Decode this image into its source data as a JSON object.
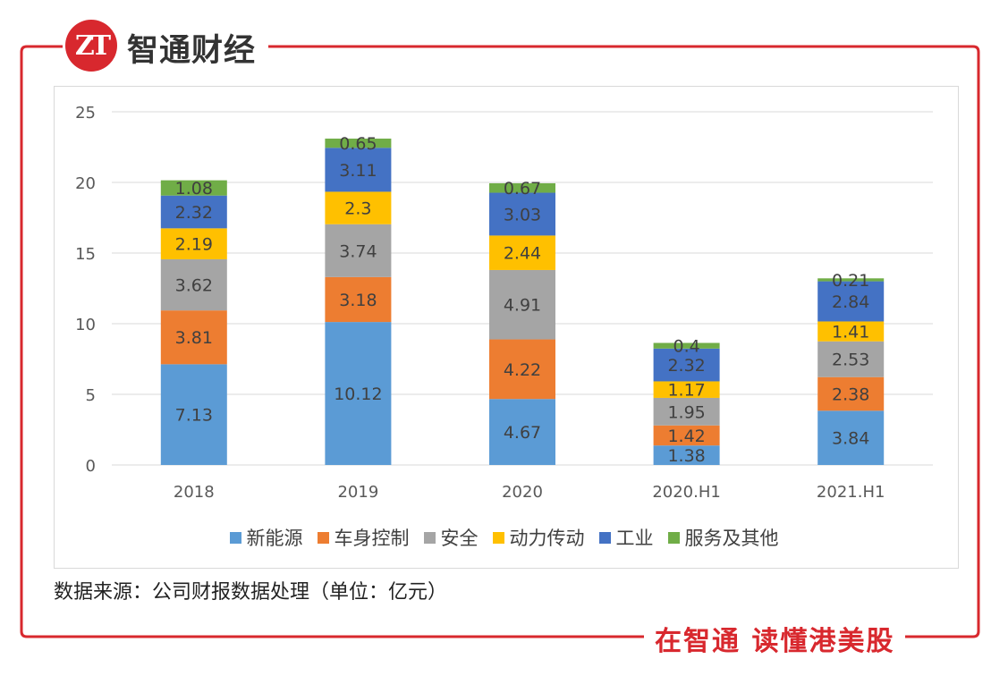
{
  "header": {
    "logo_text": "ZT",
    "brand": "智通财经"
  },
  "footer": {
    "source": "数据来源：公司财报数据处理（单位：亿元）",
    "slogan": "在智通 读懂港美股"
  },
  "colors": {
    "frame": "#d8282e",
    "grid": "#d9d9d9",
    "axis_text": "#595959",
    "label_text": "#404040"
  },
  "chart_data": {
    "type": "bar",
    "stacked": true,
    "categories": [
      "2018",
      "2019",
      "2020",
      "2020.H1",
      "2021.H1"
    ],
    "ylim": [
      0,
      25
    ],
    "yticks": [
      0,
      5,
      10,
      15,
      20,
      25
    ],
    "grid": true,
    "legend_position": "bottom",
    "series": [
      {
        "name": "新能源",
        "color": "#5b9bd5",
        "values": [
          7.13,
          10.12,
          4.67,
          1.38,
          3.84
        ]
      },
      {
        "name": "车身控制",
        "color": "#ed7d31",
        "values": [
          3.81,
          3.18,
          4.22,
          1.42,
          2.38
        ]
      },
      {
        "name": "安全",
        "color": "#a5a5a5",
        "values": [
          3.62,
          3.74,
          4.91,
          1.95,
          2.53
        ]
      },
      {
        "name": "动力传动",
        "color": "#ffc000",
        "values": [
          2.19,
          2.3,
          2.44,
          1.17,
          1.41
        ]
      },
      {
        "name": "工业",
        "color": "#4472c4",
        "values": [
          2.32,
          3.11,
          3.03,
          2.32,
          2.84
        ]
      },
      {
        "name": "服务及其他",
        "color": "#70ad47",
        "values": [
          1.08,
          0.65,
          0.67,
          0.4,
          0.21
        ]
      }
    ]
  }
}
